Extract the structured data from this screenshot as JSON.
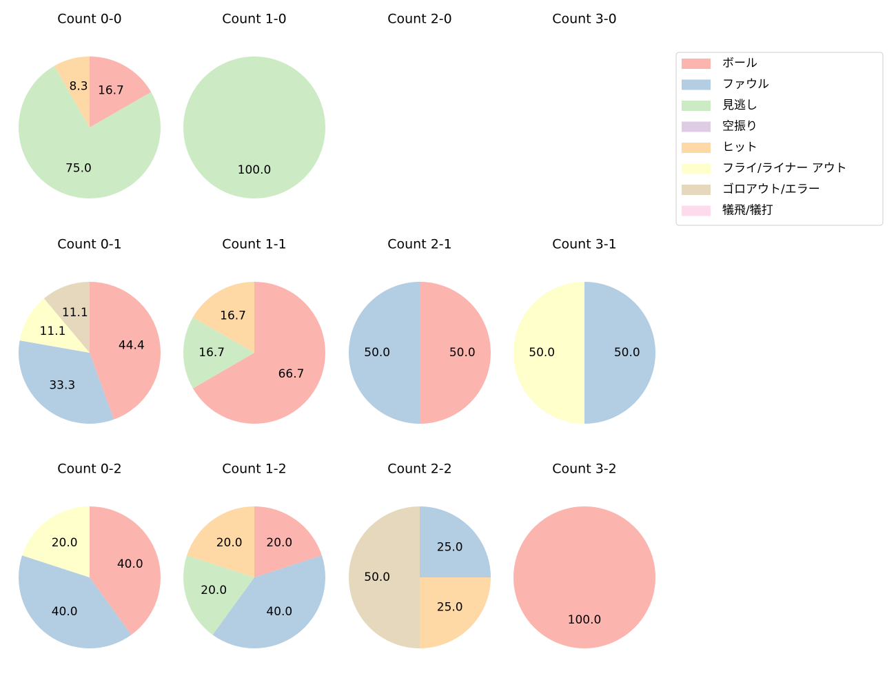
{
  "legend": {
    "labels": [
      "ボール",
      "ファウル",
      "見逃し",
      "空振り",
      "ヒット",
      "フライ/ライナー アウト",
      "ゴロアウト/エラー",
      "犠飛/犠打"
    ],
    "colors": [
      "#fbb4ae",
      "#b3cde3",
      "#ccebc5",
      "#decbe4",
      "#fed9a6",
      "#ffffcc",
      "#e5d8bd",
      "#fddaec"
    ]
  },
  "chart_data": [
    {
      "type": "pie",
      "title": "Count 0-0",
      "values": [
        16.7,
        0,
        75.0,
        0,
        8.3,
        0,
        0,
        0
      ],
      "value_labels": [
        "16.7",
        null,
        "75.0",
        null,
        "8.3",
        null,
        null,
        null
      ]
    },
    {
      "type": "pie",
      "title": "Count 1-0",
      "values": [
        0,
        0,
        100,
        0,
        0,
        0,
        0,
        0
      ],
      "value_labels": [
        null,
        null,
        "100.0",
        null,
        null,
        null,
        null,
        null
      ]
    },
    {
      "type": "pie",
      "title": "Count 2-0"
    },
    {
      "type": "pie",
      "title": "Count 3-0"
    },
    {
      "type": "pie",
      "title": "Count 0-1",
      "values": [
        44.4,
        33.3,
        0,
        0,
        0,
        11.1,
        11.1,
        0
      ],
      "value_labels": [
        "44.4",
        "33.3",
        null,
        null,
        null,
        "11.1",
        "11.1",
        null
      ]
    },
    {
      "type": "pie",
      "title": "Count 1-1",
      "values": [
        66.7,
        0,
        16.7,
        0,
        16.7,
        0,
        0,
        0
      ],
      "value_labels": [
        "66.7",
        null,
        "16.7",
        null,
        "16.7",
        null,
        null,
        null
      ]
    },
    {
      "type": "pie",
      "title": "Count 2-1",
      "values": [
        50,
        50,
        0,
        0,
        0,
        0,
        0,
        0
      ],
      "value_labels": [
        "50.0",
        "50.0",
        null,
        null,
        null,
        null,
        null,
        null
      ]
    },
    {
      "type": "pie",
      "title": "Count 3-1",
      "values": [
        0,
        50,
        0,
        0,
        0,
        50,
        0,
        0
      ],
      "value_labels": [
        null,
        "50.0",
        null,
        null,
        null,
        "50.0",
        null,
        null
      ]
    },
    {
      "type": "pie",
      "title": "Count 0-2",
      "values": [
        40,
        40,
        0,
        0,
        0,
        20,
        0,
        0
      ],
      "value_labels": [
        "40.0",
        "40.0",
        null,
        null,
        null,
        "20.0",
        null,
        null
      ]
    },
    {
      "type": "pie",
      "title": "Count 1-2",
      "values": [
        20,
        40,
        20,
        0,
        20,
        0,
        0,
        0
      ],
      "value_labels": [
        "20.0",
        "40.0",
        "20.0",
        null,
        "20.0",
        null,
        null,
        null
      ]
    },
    {
      "type": "pie",
      "title": "Count 2-2",
      "values": [
        0,
        25,
        0,
        0,
        25,
        0,
        50,
        0
      ],
      "value_labels": [
        null,
        "25.0",
        null,
        null,
        "25.0",
        null,
        "50.0",
        null
      ]
    },
    {
      "type": "pie",
      "title": "Count 3-2",
      "values": [
        100,
        0,
        0,
        0,
        0,
        0,
        0,
        0
      ],
      "value_labels": [
        "100.0",
        null,
        null,
        null,
        null,
        null,
        null,
        null
      ]
    }
  ]
}
